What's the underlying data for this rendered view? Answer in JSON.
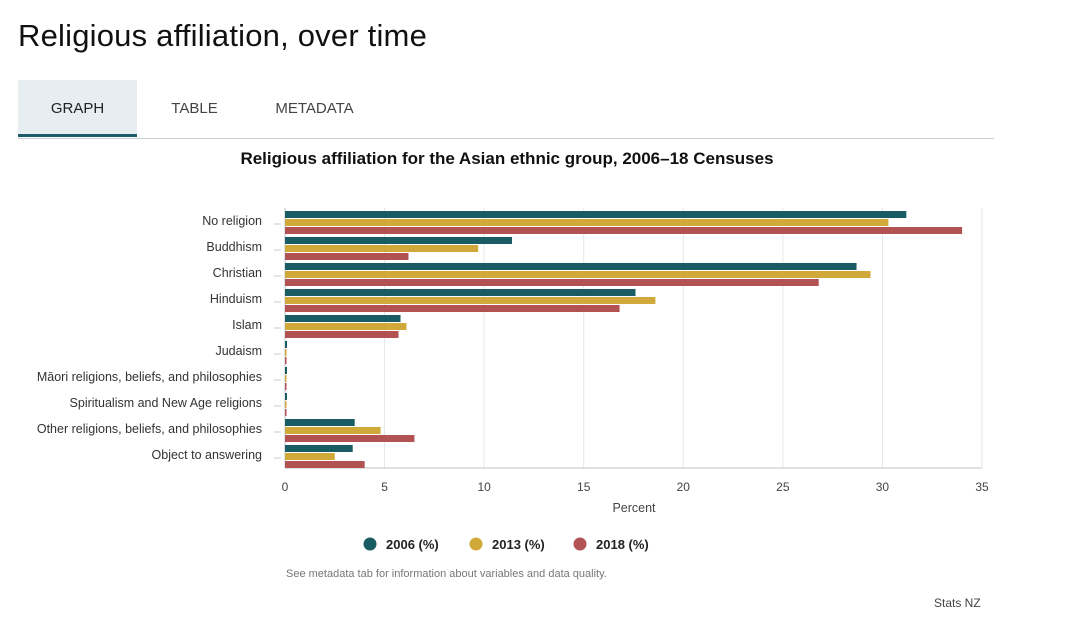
{
  "page": {
    "title": "Religious affiliation, over time",
    "tabs": [
      {
        "label": "GRAPH",
        "active": true
      },
      {
        "label": "TABLE",
        "active": false
      },
      {
        "label": "METADATA",
        "active": false
      }
    ],
    "footnote": "See metadata tab for information about variables and data quality.",
    "source": "Stats NZ"
  },
  "colors": {
    "2006": "#1a5c63",
    "2013": "#d1a93a",
    "2018": "#b25252"
  },
  "chart_data": {
    "type": "bar",
    "orientation": "horizontal",
    "title": "Religious affiliation for the Asian ethnic group, 2006–18 Censuses",
    "xlabel": "Percent",
    "ylabel": "",
    "xlim": [
      0,
      35
    ],
    "xticks": [
      0,
      5,
      10,
      15,
      20,
      25,
      30,
      35
    ],
    "grid": "vertical",
    "legend_position": "bottom",
    "categories": [
      "No religion",
      "Buddhism",
      "Christian",
      "Hinduism",
      "Islam",
      "Judaism",
      "Māori religions, beliefs, and philosophies",
      "Spiritualism and New Age religions",
      "Other religions, beliefs, and philosophies",
      "Object to answering"
    ],
    "series": [
      {
        "name": "2006 (%)",
        "values": [
          31.2,
          11.4,
          28.7,
          17.6,
          5.8,
          0.1,
          0.1,
          0.1,
          3.5,
          3.4
        ]
      },
      {
        "name": "2013 (%)",
        "values": [
          30.3,
          9.7,
          29.4,
          18.6,
          6.1,
          0.05,
          0.05,
          0.05,
          4.8,
          2.5
        ]
      },
      {
        "name": "2018 (%)",
        "values": [
          34.0,
          6.2,
          26.8,
          16.8,
          5.7,
          0.05,
          0.05,
          0.05,
          6.5,
          4.0
        ]
      }
    ]
  }
}
